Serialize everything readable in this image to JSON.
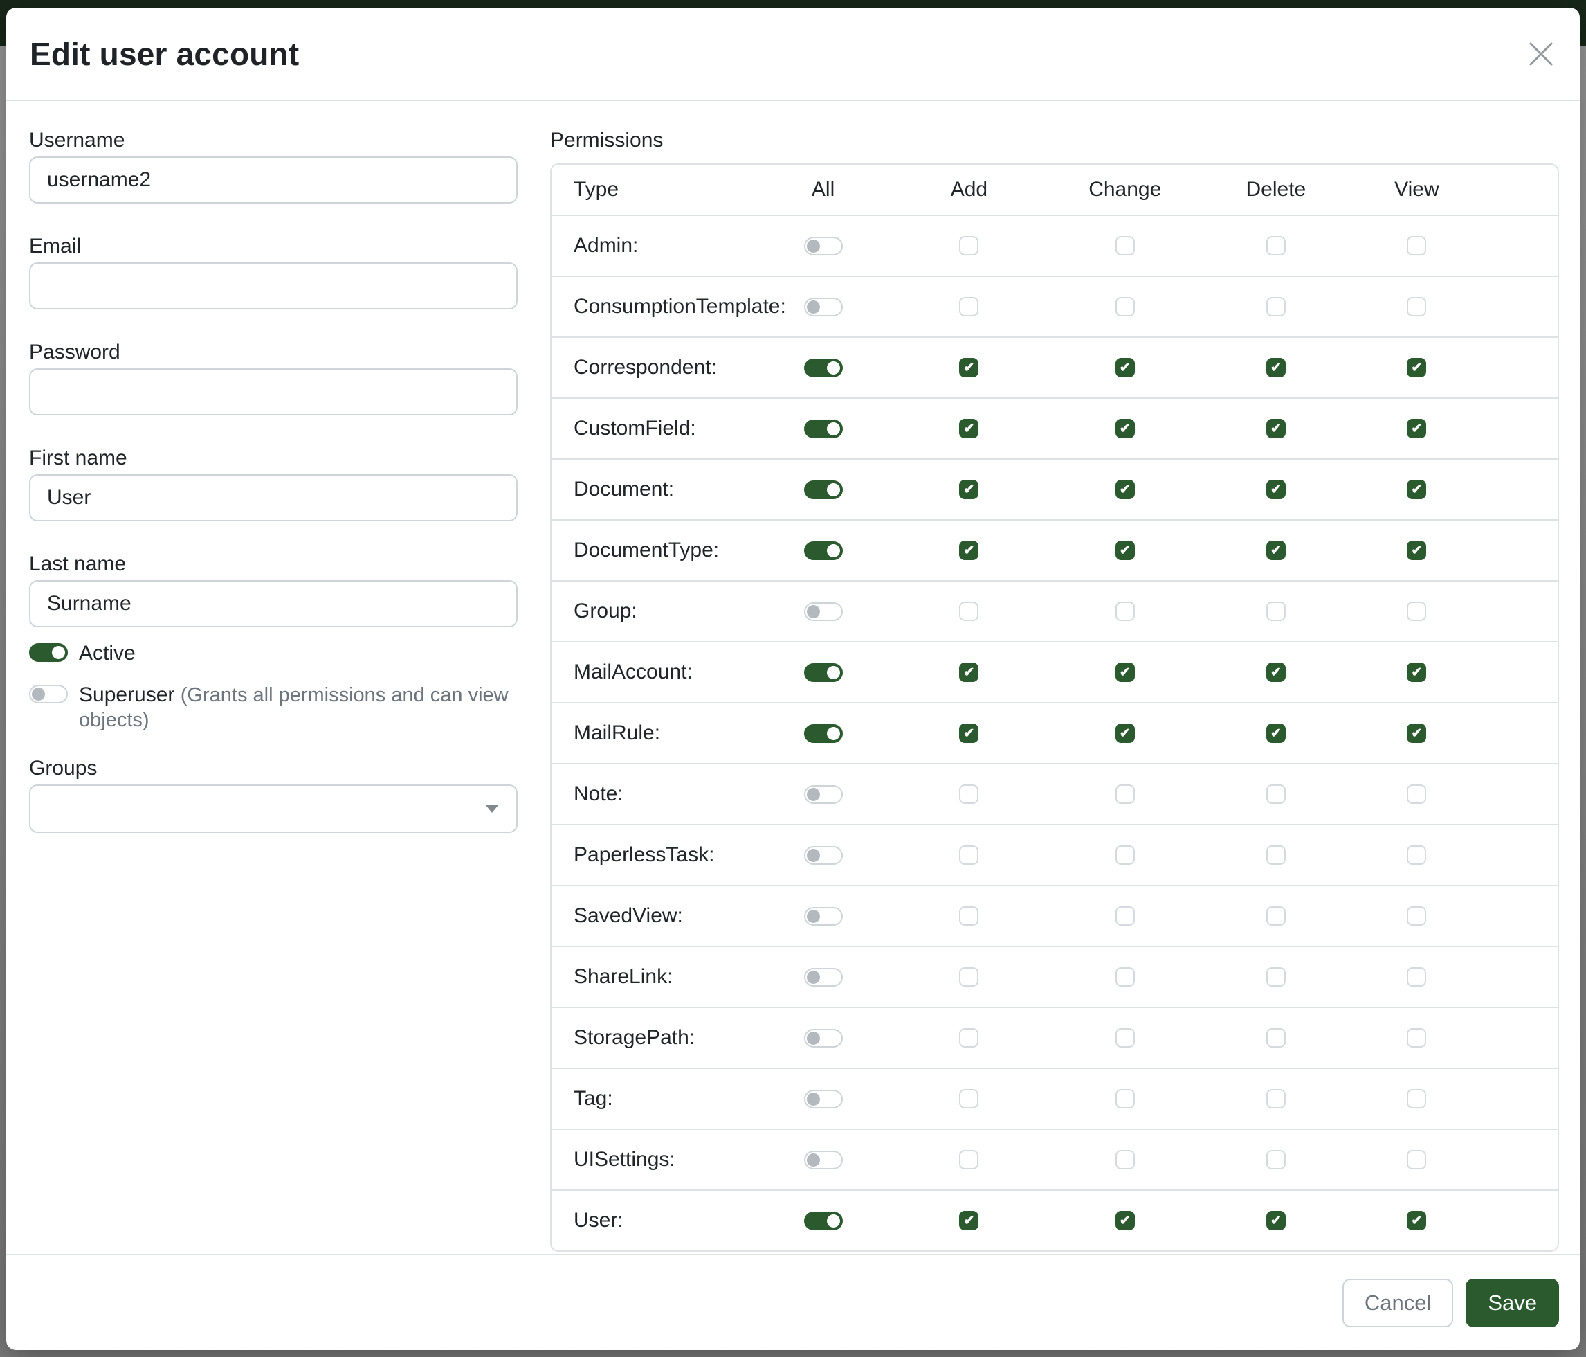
{
  "colors": {
    "primary_green": "#2a5a2d",
    "navbar_green": "#172719",
    "border_light": "#dee2e6",
    "input_border": "#ced4da",
    "hint_gray": "#6c757d"
  },
  "modal": {
    "title": "Edit user account",
    "close_icon": "x",
    "form": {
      "username": {
        "label": "Username",
        "value": "username2"
      },
      "email": {
        "label": "Email",
        "value": ""
      },
      "password": {
        "label": "Password",
        "value": ""
      },
      "first_name": {
        "label": "First name",
        "value": "User"
      },
      "last_name": {
        "label": "Last name",
        "value": "Surname"
      },
      "active": {
        "label": "Active",
        "enabled": true
      },
      "superuser": {
        "label": "Superuser",
        "hint": "(Grants all permissions and can view objects)",
        "enabled": false
      },
      "groups": {
        "label": "Groups",
        "value": ""
      }
    },
    "permissions": {
      "label": "Permissions",
      "columns": [
        "Type",
        "All",
        "Add",
        "Change",
        "Delete",
        "View"
      ],
      "rows": [
        {
          "type": "Admin:",
          "all": false,
          "add": false,
          "change": false,
          "delete": false,
          "view": false
        },
        {
          "type": "ConsumptionTemplate:",
          "all": false,
          "add": false,
          "change": false,
          "delete": false,
          "view": false
        },
        {
          "type": "Correspondent:",
          "all": true,
          "add": true,
          "change": true,
          "delete": true,
          "view": true
        },
        {
          "type": "CustomField:",
          "all": true,
          "add": true,
          "change": true,
          "delete": true,
          "view": true
        },
        {
          "type": "Document:",
          "all": true,
          "add": true,
          "change": true,
          "delete": true,
          "view": true
        },
        {
          "type": "DocumentType:",
          "all": true,
          "add": true,
          "change": true,
          "delete": true,
          "view": true
        },
        {
          "type": "Group:",
          "all": false,
          "add": false,
          "change": false,
          "delete": false,
          "view": false
        },
        {
          "type": "MailAccount:",
          "all": true,
          "add": true,
          "change": true,
          "delete": true,
          "view": true
        },
        {
          "type": "MailRule:",
          "all": true,
          "add": true,
          "change": true,
          "delete": true,
          "view": true
        },
        {
          "type": "Note:",
          "all": false,
          "add": false,
          "change": false,
          "delete": false,
          "view": false
        },
        {
          "type": "PaperlessTask:",
          "all": false,
          "add": false,
          "change": false,
          "delete": false,
          "view": false
        },
        {
          "type": "SavedView:",
          "all": false,
          "add": false,
          "change": false,
          "delete": false,
          "view": false
        },
        {
          "type": "ShareLink:",
          "all": false,
          "add": false,
          "change": false,
          "delete": false,
          "view": false
        },
        {
          "type": "StoragePath:",
          "all": false,
          "add": false,
          "change": false,
          "delete": false,
          "view": false
        },
        {
          "type": "Tag:",
          "all": false,
          "add": false,
          "change": false,
          "delete": false,
          "view": false
        },
        {
          "type": "UISettings:",
          "all": false,
          "add": false,
          "change": false,
          "delete": false,
          "view": false
        },
        {
          "type": "User:",
          "all": true,
          "add": true,
          "change": true,
          "delete": true,
          "view": true
        }
      ]
    },
    "footer": {
      "cancel": "Cancel",
      "save": "Save"
    }
  }
}
